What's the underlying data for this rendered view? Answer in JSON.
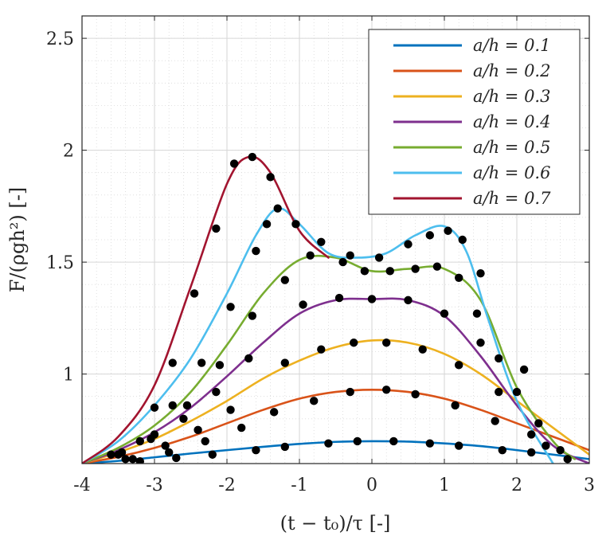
{
  "chart_data": {
    "type": "line",
    "xlabel": "(t − t₀)/τ [-]",
    "ylabel": "F/(ρgh²) [-]",
    "xlim": [
      -4,
      3
    ],
    "ylim": [
      0.6,
      2.6
    ],
    "xticks": [
      -4,
      -3,
      -2,
      -1,
      0,
      1,
      2,
      3
    ],
    "xtick_labels": [
      "-4",
      "-3",
      "-2",
      "-1",
      "0",
      "1",
      "2",
      "3"
    ],
    "yticks": [
      1,
      1.5,
      2,
      2.5
    ],
    "ytick_labels": [
      "1",
      "1.5",
      "2",
      "2.5"
    ],
    "grid": "major solid, minor dotted",
    "legend_position": "top-right",
    "series": [
      {
        "name": "a/h = 0.1",
        "color": "#0072BD",
        "line": {
          "x": [
            -4,
            -3.5,
            -3,
            -2.5,
            -2,
            -1.5,
            -1,
            -0.5,
            0,
            0.5,
            1,
            1.5,
            2,
            2.5,
            3
          ],
          "y": [
            0.6,
            0.612,
            0.628,
            0.645,
            0.66,
            0.675,
            0.688,
            0.697,
            0.7,
            0.698,
            0.69,
            0.678,
            0.66,
            0.64,
            0.62
          ]
        },
        "markers": {
          "x": [
            -3.2,
            -2.7,
            -2.2,
            -1.6,
            -1.2,
            -0.6,
            -0.2,
            0.3,
            0.8,
            1.2,
            1.8,
            2.2
          ],
          "y": [
            0.61,
            0.625,
            0.64,
            0.66,
            0.675,
            0.69,
            0.7,
            0.7,
            0.69,
            0.68,
            0.66,
            0.65
          ]
        }
      },
      {
        "name": "a/h = 0.2",
        "color": "#D95319",
        "line": {
          "x": [
            -4,
            -3.5,
            -3,
            -2.5,
            -2,
            -1.5,
            -1,
            -0.5,
            0,
            0.5,
            1,
            1.5,
            2,
            2.5,
            3
          ],
          "y": [
            0.6,
            0.63,
            0.67,
            0.72,
            0.78,
            0.84,
            0.89,
            0.92,
            0.93,
            0.92,
            0.89,
            0.84,
            0.78,
            0.72,
            0.66
          ]
        },
        "markers": {
          "x": [
            -3.3,
            -2.8,
            -2.3,
            -1.8,
            -1.35,
            -0.8,
            -0.3,
            0.2,
            0.6,
            1.15,
            1.7,
            2.2
          ],
          "y": [
            0.62,
            0.65,
            0.7,
            0.76,
            0.83,
            0.88,
            0.92,
            0.93,
            0.91,
            0.86,
            0.79,
            0.73
          ]
        }
      },
      {
        "name": "a/h = 0.3",
        "color": "#EDB120",
        "line": {
          "x": [
            -4,
            -3.5,
            -3,
            -2.5,
            -2,
            -1.5,
            -1,
            -0.5,
            0,
            0.5,
            1,
            1.5,
            2,
            2.5,
            3
          ],
          "y": [
            0.6,
            0.65,
            0.71,
            0.79,
            0.88,
            0.98,
            1.06,
            1.12,
            1.15,
            1.14,
            1.09,
            1.0,
            0.88,
            0.76,
            0.64
          ]
        },
        "markers": {
          "x": [
            -3.4,
            -2.85,
            -2.4,
            -1.95,
            -1.2,
            -0.7,
            -0.25,
            0.2,
            0.7,
            1.2,
            1.75,
            2.3
          ],
          "y": [
            0.62,
            0.68,
            0.75,
            0.84,
            1.05,
            1.11,
            1.14,
            1.14,
            1.11,
            1.04,
            0.92,
            0.78
          ]
        }
      },
      {
        "name": "a/h = 0.4",
        "color": "#7E2F8E",
        "line": {
          "x": [
            -4,
            -3.5,
            -3,
            -2.5,
            -2,
            -1.5,
            -1,
            -0.5,
            0,
            0.5,
            1,
            1.5,
            2,
            2.5,
            3
          ],
          "y": [
            0.6,
            0.66,
            0.74,
            0.85,
            0.99,
            1.14,
            1.27,
            1.33,
            1.335,
            1.33,
            1.26,
            1.08,
            0.86,
            0.68,
            0.6
          ]
        },
        "markers": {
          "x": [
            -3.5,
            -3.05,
            -2.6,
            -2.15,
            -1.7,
            -0.95,
            -0.45,
            0,
            0.5,
            1.0,
            1.5,
            2.0,
            2.6
          ],
          "y": [
            0.64,
            0.71,
            0.8,
            0.92,
            1.07,
            1.31,
            1.34,
            1.335,
            1.33,
            1.27,
            1.14,
            0.92,
            0.66
          ]
        }
      },
      {
        "name": "a/h = 0.5",
        "color": "#77AC30",
        "line": {
          "x": [
            -4,
            -3.5,
            -3,
            -2.5,
            -2,
            -1.5,
            -1,
            -0.5,
            0,
            0.5,
            1,
            1.5,
            2,
            2.5,
            2.8
          ],
          "y": [
            0.6,
            0.67,
            0.77,
            0.92,
            1.13,
            1.36,
            1.51,
            1.52,
            1.46,
            1.47,
            1.47,
            1.33,
            0.94,
            0.7,
            0.62
          ]
        },
        "markers": {
          "x": [
            -3.45,
            -3.0,
            -2.55,
            -2.1,
            -1.65,
            -1.2,
            -0.85,
            -0.4,
            -0.1,
            0.25,
            0.6,
            0.9,
            1.2,
            1.45,
            1.75,
            2.7
          ],
          "y": [
            0.65,
            0.73,
            0.86,
            1.04,
            1.26,
            1.42,
            1.53,
            1.5,
            1.46,
            1.46,
            1.47,
            1.48,
            1.43,
            1.27,
            1.07,
            0.62
          ]
        }
      },
      {
        "name": "a/h = 0.6",
        "color": "#4DBEEE",
        "line": {
          "x": [
            -4,
            -3.5,
            -3,
            -2.5,
            -2,
            -1.6,
            -1.3,
            -1,
            -0.6,
            -0.2,
            0.2,
            0.6,
            1.0,
            1.3,
            1.6,
            2.0,
            2.5
          ],
          "y": [
            0.6,
            0.7,
            0.86,
            1.07,
            1.36,
            1.62,
            1.74,
            1.67,
            1.54,
            1.52,
            1.54,
            1.62,
            1.66,
            1.55,
            1.25,
            0.88,
            0.6
          ]
        },
        "markers": {
          "x": [
            -3.2,
            -2.75,
            -2.35,
            -1.95,
            -1.6,
            -1.45,
            -1.3,
            -1.05,
            -0.7,
            -0.3,
            0.1,
            0.5,
            0.8,
            1.05,
            1.25,
            1.5,
            2.1,
            2.4
          ],
          "y": [
            0.7,
            0.86,
            1.05,
            1.3,
            1.55,
            1.67,
            1.74,
            1.67,
            1.59,
            1.53,
            1.52,
            1.58,
            1.62,
            1.64,
            1.6,
            1.45,
            1.02,
            0.68
          ]
        }
      },
      {
        "name": "a/h = 0.7",
        "color": "#A2142F",
        "line": {
          "x": [
            -4,
            -3.5,
            -3,
            -2.5,
            -2,
            -1.7,
            -1.4,
            -1.0,
            -0.6
          ],
          "y": [
            0.6,
            0.72,
            0.95,
            1.39,
            1.85,
            1.97,
            1.9,
            1.64,
            1.52
          ]
        },
        "markers": {
          "x": [
            -3.6,
            -3.0,
            -2.75,
            -2.45,
            -2.15,
            -1.9,
            -1.65,
            -1.4
          ],
          "y": [
            0.64,
            0.85,
            1.05,
            1.36,
            1.65,
            1.94,
            1.97,
            1.88
          ]
        }
      }
    ]
  }
}
